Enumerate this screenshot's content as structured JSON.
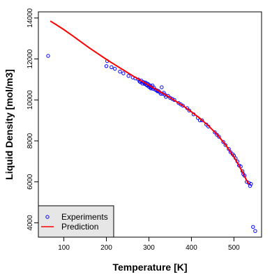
{
  "chart_data": {
    "type": "scatter",
    "xlabel": "Temperature [K]",
    "ylabel": "Liquid Density [mol/m3]",
    "xlim": [
      40,
      565
    ],
    "ylim": [
      3300,
      14300
    ],
    "x_ticks": [
      100,
      200,
      300,
      400,
      500
    ],
    "y_ticks": [
      4000,
      6000,
      8000,
      10000,
      12000,
      14000
    ],
    "legend_position": "bottom-left",
    "grid": false,
    "series": [
      {
        "name": "Experiments",
        "kind": "points",
        "color": "#0000ff",
        "points": [
          [
            63,
            12150
          ],
          [
            200,
            11650
          ],
          [
            202,
            11900
          ],
          [
            212,
            11600
          ],
          [
            220,
            11520
          ],
          [
            232,
            11380
          ],
          [
            240,
            11300
          ],
          [
            252,
            11170
          ],
          [
            262,
            11100
          ],
          [
            268,
            11050
          ],
          [
            275,
            11000
          ],
          [
            278,
            10900
          ],
          [
            280,
            10870
          ],
          [
            282,
            10950
          ],
          [
            285,
            10800
          ],
          [
            287,
            10870
          ],
          [
            289,
            10830
          ],
          [
            290,
            10780
          ],
          [
            292,
            10850
          ],
          [
            294,
            10740
          ],
          [
            295,
            10800
          ],
          [
            296,
            10700
          ],
          [
            298,
            10780
          ],
          [
            300,
            10640
          ],
          [
            301,
            10720
          ],
          [
            303,
            10600
          ],
          [
            304,
            10680
          ],
          [
            305,
            10560
          ],
          [
            307,
            10620
          ],
          [
            308,
            10710
          ],
          [
            310,
            10540
          ],
          [
            312,
            10600
          ],
          [
            315,
            10500
          ],
          [
            318,
            10470
          ],
          [
            320,
            10420
          ],
          [
            322,
            10440
          ],
          [
            325,
            10380
          ],
          [
            328,
            10300
          ],
          [
            330,
            10620
          ],
          [
            332,
            10300
          ],
          [
            335,
            10350
          ],
          [
            338,
            10250
          ],
          [
            340,
            10150
          ],
          [
            345,
            10200
          ],
          [
            350,
            10100
          ],
          [
            355,
            10050
          ],
          [
            360,
            10000
          ],
          [
            370,
            9850
          ],
          [
            375,
            9780
          ],
          [
            380,
            9720
          ],
          [
            390,
            9600
          ],
          [
            395,
            9480
          ],
          [
            405,
            9300
          ],
          [
            415,
            9120
          ],
          [
            420,
            9000
          ],
          [
            425,
            9000
          ],
          [
            435,
            8800
          ],
          [
            440,
            8700
          ],
          [
            455,
            8420
          ],
          [
            460,
            8300
          ],
          [
            465,
            8200
          ],
          [
            475,
            7950
          ],
          [
            480,
            7800
          ],
          [
            488,
            7600
          ],
          [
            492,
            7450
          ],
          [
            497,
            7350
          ],
          [
            500,
            7280
          ],
          [
            504,
            7150
          ],
          [
            508,
            7000
          ],
          [
            512,
            6800
          ],
          [
            516,
            6750
          ],
          [
            520,
            6520
          ],
          [
            522,
            6380
          ],
          [
            525,
            6300
          ],
          [
            530,
            6000
          ],
          [
            535,
            5950
          ],
          [
            538,
            5800
          ],
          [
            540,
            5900
          ],
          [
            545,
            3800
          ],
          [
            550,
            3600
          ]
        ]
      },
      {
        "name": "Prediction",
        "kind": "line",
        "color": "#ff0000",
        "points": [
          [
            68,
            13850
          ],
          [
            80,
            13700
          ],
          [
            100,
            13430
          ],
          [
            120,
            13140
          ],
          [
            140,
            12840
          ],
          [
            160,
            12540
          ],
          [
            180,
            12260
          ],
          [
            200,
            11980
          ],
          [
            220,
            11720
          ],
          [
            240,
            11460
          ],
          [
            260,
            11200
          ],
          [
            280,
            10960
          ],
          [
            300,
            10720
          ],
          [
            320,
            10480
          ],
          [
            340,
            10240
          ],
          [
            360,
            9980
          ],
          [
            380,
            9720
          ],
          [
            400,
            9420
          ],
          [
            420,
            9100
          ],
          [
            440,
            8740
          ],
          [
            460,
            8320
          ],
          [
            480,
            7820
          ],
          [
            500,
            7220
          ],
          [
            510,
            6860
          ],
          [
            520,
            6480
          ],
          [
            528,
            6150
          ],
          [
            533,
            5950
          ],
          [
            537,
            5880
          ]
        ]
      }
    ]
  }
}
